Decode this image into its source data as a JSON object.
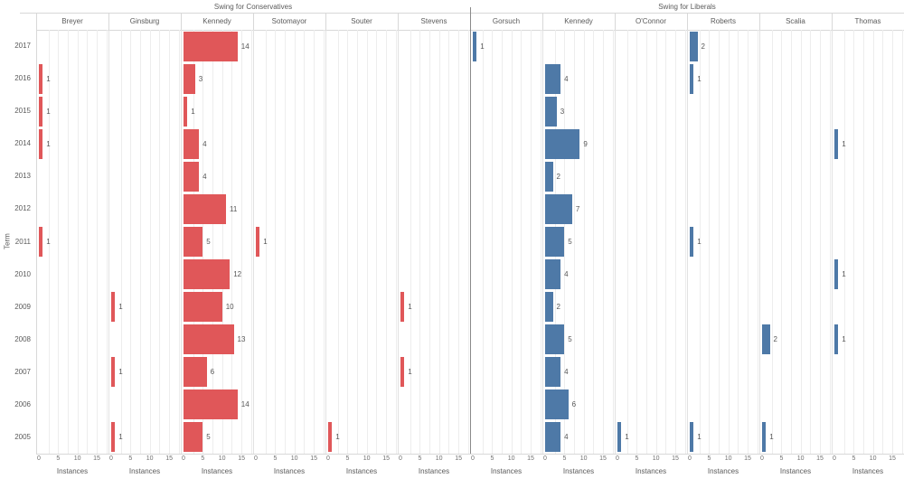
{
  "chart_data": {
    "type": "bar",
    "orientation": "horizontal",
    "title": "",
    "ylabel": "Term",
    "xlabel_per_column": "Instances",
    "years": [
      "2017",
      "2016",
      "2015",
      "2014",
      "2013",
      "2012",
      "2011",
      "2010",
      "2009",
      "2008",
      "2007",
      "2006",
      "2005"
    ],
    "x_ticks": [
      "0",
      "5",
      "10",
      "15"
    ],
    "xlim": [
      0,
      18.7
    ],
    "grid_step": 2.5,
    "legend": "none",
    "panels": [
      {
        "label": "Swing for Conservatives",
        "bar_color": "#e05759",
        "series": [
          {
            "name": "Breyer",
            "values": [
              null,
              1,
              1,
              1,
              null,
              null,
              1,
              null,
              null,
              null,
              null,
              null,
              null
            ]
          },
          {
            "name": "Ginsburg",
            "values": [
              null,
              null,
              null,
              null,
              null,
              null,
              null,
              null,
              1,
              null,
              1,
              null,
              1
            ]
          },
          {
            "name": "Kennedy",
            "values": [
              14,
              3,
              1,
              4,
              4,
              11,
              5,
              12,
              10,
              13,
              6,
              14,
              5
            ]
          },
          {
            "name": "Sotomayor",
            "values": [
              null,
              null,
              null,
              null,
              null,
              null,
              1,
              null,
              null,
              null,
              null,
              null,
              null
            ]
          },
          {
            "name": "Souter",
            "values": [
              null,
              null,
              null,
              null,
              null,
              null,
              null,
              null,
              null,
              null,
              null,
              null,
              1
            ]
          },
          {
            "name": "Stevens",
            "values": [
              null,
              null,
              null,
              null,
              null,
              null,
              null,
              null,
              1,
              null,
              1,
              null,
              null
            ]
          }
        ]
      },
      {
        "label": "Swing for Liberals",
        "bar_color": "#4e79a7",
        "series": [
          {
            "name": "Gorsuch",
            "values": [
              1,
              null,
              null,
              null,
              null,
              null,
              null,
              null,
              null,
              null,
              null,
              null,
              null
            ]
          },
          {
            "name": "Kennedy",
            "values": [
              null,
              4,
              3,
              9,
              2,
              7,
              5,
              4,
              2,
              5,
              4,
              6,
              4
            ]
          },
          {
            "name": "O'Connor",
            "values": [
              null,
              null,
              null,
              null,
              null,
              null,
              null,
              null,
              null,
              null,
              null,
              null,
              1
            ]
          },
          {
            "name": "Roberts",
            "values": [
              2,
              1,
              null,
              null,
              null,
              null,
              1,
              null,
              null,
              null,
              null,
              null,
              1
            ]
          },
          {
            "name": "Scalia",
            "values": [
              null,
              null,
              null,
              null,
              null,
              null,
              null,
              null,
              null,
              2,
              null,
              null,
              1
            ]
          },
          {
            "name": "Thomas",
            "values": [
              null,
              null,
              null,
              1,
              null,
              null,
              null,
              1,
              null,
              1,
              null,
              null,
              null
            ]
          }
        ]
      }
    ]
  },
  "colors": {
    "conservative_red": "#e05759",
    "liberal_blue": "#4e79a7",
    "text": "#5b5b5b",
    "tick_text": "#6e6e6e",
    "gridline": "#ededed",
    "separator": "#e2e2e2",
    "panel_divider": "#8a8a8a",
    "header_line": "#d8d8d8"
  }
}
